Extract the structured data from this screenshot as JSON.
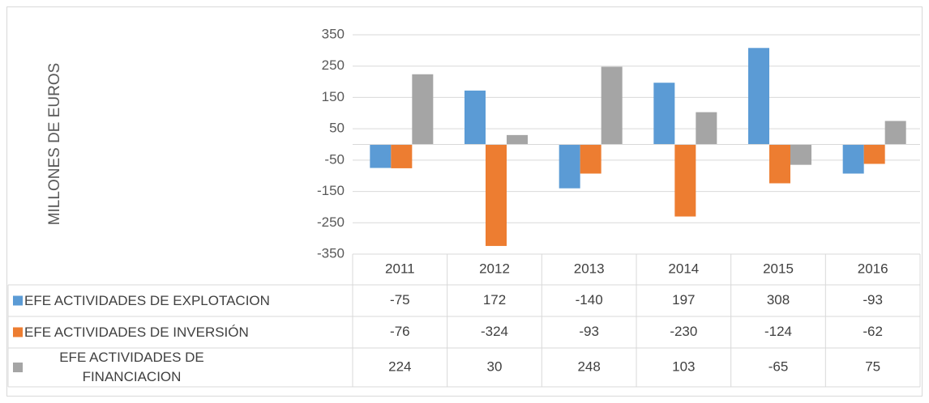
{
  "chart_data": {
    "type": "bar",
    "y_axis_label": "MILLONES DE EUROS",
    "categories": [
      "2011",
      "2012",
      "2013",
      "2014",
      "2015",
      "2016"
    ],
    "series": [
      {
        "name": "EFE ACTIVIDADES DE EXPLOTACION",
        "color": "#5b9bd5",
        "values": [
          -75,
          172,
          -140,
          197,
          308,
          -93
        ]
      },
      {
        "name": "EFE ACTIVIDADES DE INVERSIÓN",
        "color": "#ed7d31",
        "values": [
          -76,
          -324,
          -93,
          -230,
          -124,
          -62
        ]
      },
      {
        "name": "EFE ACTIVIDADES DE FINANCIACION",
        "color": "#a5a5a5",
        "values": [
          224,
          30,
          248,
          103,
          -65,
          75
        ]
      }
    ],
    "ylim": [
      -350,
      350
    ],
    "yticks": [
      350,
      250,
      150,
      50,
      -50,
      -150,
      -250,
      -350
    ],
    "grid": true,
    "data_table": true
  }
}
